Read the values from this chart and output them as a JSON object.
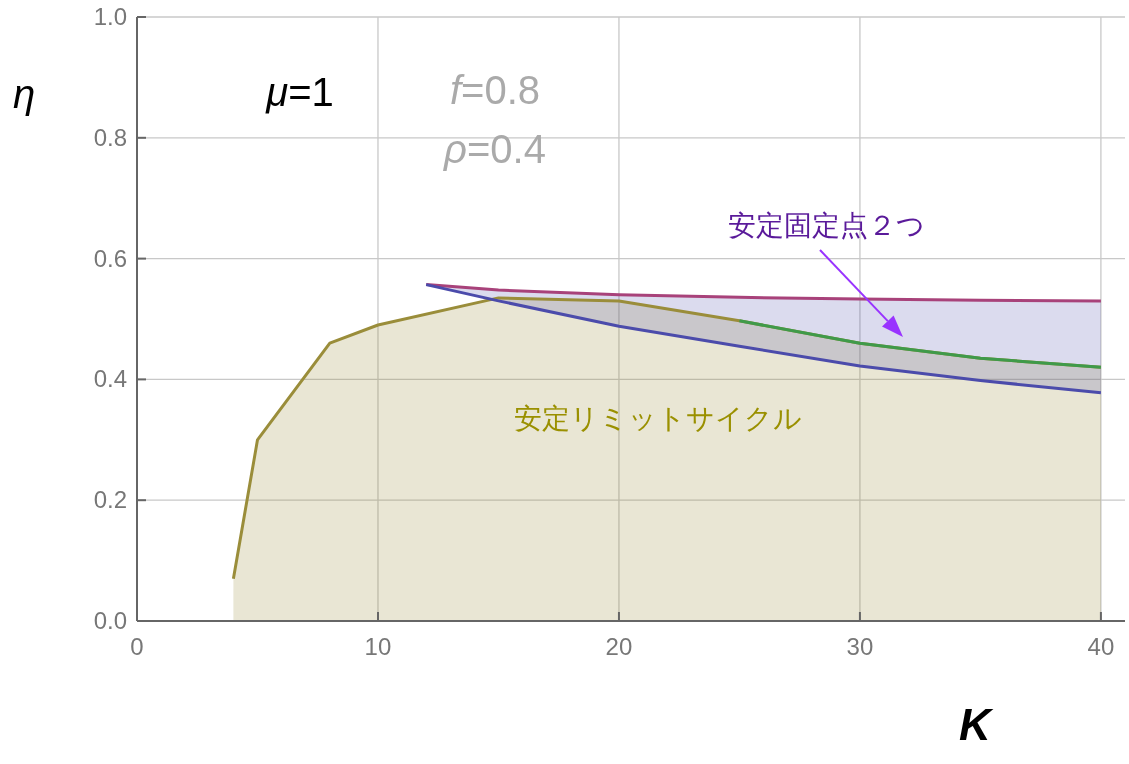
{
  "chart_data": {
    "type": "area",
    "xlabel": "K",
    "ylabel": "η",
    "xlim": [
      0,
      41
    ],
    "ylim": [
      0,
      1
    ],
    "xticks": [
      0,
      10,
      20,
      30,
      40
    ],
    "yticks": [
      {
        "value": 0,
        "label": "0.0"
      },
      0.2,
      0.4,
      0.6,
      0.8,
      {
        "value": 1,
        "label": "1.0"
      }
    ],
    "grid": true,
    "series": [
      {
        "color": "#9a8d3a",
        "x": [
          4,
          5,
          8,
          10,
          15,
          20,
          25,
          30,
          35,
          40
        ],
        "values": [
          0.07,
          0.3,
          0.46,
          0.49,
          0.535,
          0.53,
          0.497,
          0.46,
          0.435,
          0.42
        ]
      },
      {
        "type": "line",
        "color": "#3f9a4a",
        "x": [
          25,
          30,
          35,
          40
        ],
        "values": [
          0.497,
          0.46,
          0.435,
          0.42
        ]
      },
      {
        "type": "line",
        "color": "#a8427a",
        "x": [
          12,
          15,
          20,
          25,
          30,
          35,
          40
        ],
        "values": [
          0.557,
          0.548,
          0.54,
          0.536,
          0.533,
          0.531,
          0.53
        ]
      },
      {
        "type": "line",
        "color": "#4b4bab",
        "x": [
          12,
          15,
          20,
          25,
          30,
          35,
          40
        ],
        "values": [
          0.557,
          0.53,
          0.488,
          0.455,
          0.422,
          0.398,
          0.378
        ],
        "lower": [
          0.557,
          0.53,
          0.488,
          0.455,
          0.422,
          0.398,
          0.378
        ],
        "upper": [
          0.557,
          0.548,
          0.54,
          0.536,
          0.533,
          0.531,
          0.53
        ]
      }
    ],
    "annotations": [
      "*μ*=1",
      "*f*=0.8",
      "*ρ*=0.4",
      "安定固定点２つ",
      "安定リミットサイクル"
    ]
  }
}
